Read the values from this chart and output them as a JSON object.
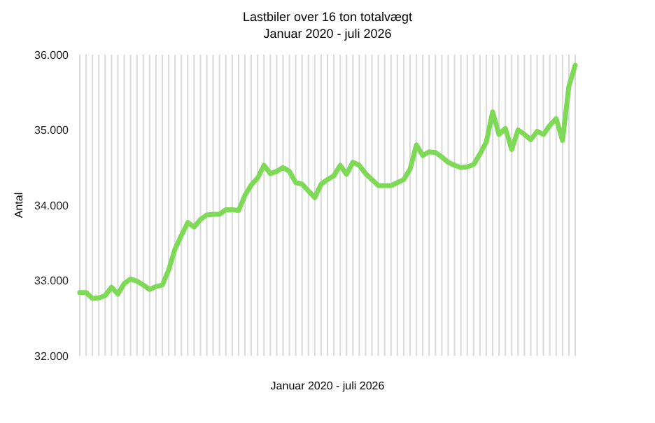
{
  "chart_data": {
    "type": "line",
    "title": "Lastbiler over 16 ton totalvægt",
    "subtitle": "Januar 2020 - juli 2026",
    "xlabel": "Januar 2020 - juli 2026",
    "ylabel": "Antal",
    "categories": [
      null,
      null,
      null,
      null,
      null,
      null,
      null,
      null,
      null,
      null,
      null,
      null,
      null,
      null,
      null,
      null,
      null,
      null,
      null,
      null,
      null,
      null,
      null,
      null,
      null,
      null,
      null,
      null,
      null,
      null,
      null,
      null,
      null,
      null,
      null,
      null,
      null,
      null,
      null,
      null,
      null,
      null,
      null,
      null,
      null,
      null,
      null,
      null,
      null,
      null,
      null,
      null,
      null,
      null,
      null,
      null,
      null,
      null,
      null,
      null,
      null,
      null,
      null,
      null,
      null,
      null,
      null,
      null,
      null,
      null,
      null,
      null,
      null,
      null,
      null,
      null,
      null,
      null,
      null
    ],
    "series": [
      {
        "color": "#7ed957",
        "values": [
          32840,
          32840,
          32760,
          32770,
          32800,
          32910,
          32820,
          32960,
          33020,
          32990,
          32940,
          32880,
          32920,
          32940,
          33140,
          33420,
          33600,
          33770,
          33710,
          33810,
          33870,
          33880,
          33880,
          33940,
          33940,
          33930,
          34130,
          34270,
          34360,
          34530,
          34420,
          34450,
          34500,
          34450,
          34300,
          34280,
          34190,
          34100,
          34280,
          34340,
          34390,
          34530,
          34410,
          34570,
          34530,
          34420,
          34340,
          34260,
          34260,
          34260,
          34300,
          34340,
          34480,
          34800,
          34660,
          34710,
          34700,
          34640,
          34570,
          34530,
          34500,
          34510,
          34540,
          34680,
          34840,
          35240,
          34940,
          35020,
          34740,
          35000,
          34940,
          34870,
          34980,
          34940,
          35060,
          35150,
          34860,
          35580,
          35860
        ]
      }
    ],
    "ylim": [
      32000,
      36000
    ],
    "yticks": [
      {
        "value": 32000,
        "label": "32.000"
      },
      {
        "value": 33000,
        "label": "33.000"
      },
      {
        "value": 34000,
        "label": "34.000"
      },
      {
        "value": 35000,
        "label": "35.000"
      },
      {
        "value": 36000,
        "label": "36.000"
      }
    ],
    "grid": "x",
    "marker": "none",
    "line_style": "solid"
  }
}
